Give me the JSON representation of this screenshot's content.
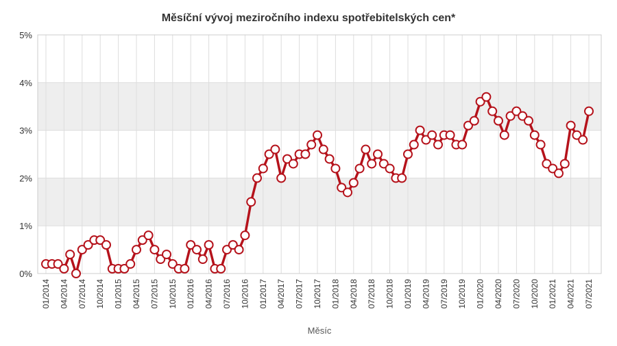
{
  "chart_data": {
    "type": "line",
    "title": "Měsíční vývoj meziročního indexu spotřebitelských cen*",
    "xlabel": "Měsíc",
    "ylabel": "",
    "ylim": [
      0,
      5
    ],
    "y_ticks": [
      "0%",
      "1%",
      "2%",
      "3%",
      "4%",
      "5%"
    ],
    "grid": true,
    "legend": "none",
    "colors": {
      "line": "#b5121b",
      "marker_fill": "#ffffff",
      "band": "#eeeeee",
      "grid": "#dddddd"
    },
    "x_tick_labels": [
      "01/2014",
      "04/2014",
      "07/2014",
      "10/2014",
      "01/2015",
      "04/2015",
      "07/2015",
      "10/2015",
      "01/2016",
      "04/2016",
      "07/2016",
      "10/2016",
      "01/2017",
      "04/2017",
      "07/2017",
      "10/2017",
      "01/2018",
      "04/2018",
      "07/2018",
      "10/2018",
      "01/2019",
      "04/2019",
      "07/2019",
      "10/2019",
      "01/2020",
      "04/2020",
      "07/2020",
      "10/2020",
      "01/2021",
      "04/2021",
      "07/2021"
    ],
    "series": [
      {
        "x_start": "01/2014",
        "x_end": "07/2021",
        "values": [
          0.2,
          0.2,
          0.2,
          0.1,
          0.4,
          0.0,
          0.5,
          0.6,
          0.7,
          0.7,
          0.6,
          0.1,
          0.1,
          0.1,
          0.2,
          0.5,
          0.7,
          0.8,
          0.5,
          0.3,
          0.4,
          0.2,
          0.1,
          0.1,
          0.6,
          0.5,
          0.3,
          0.6,
          0.1,
          0.1,
          0.5,
          0.6,
          0.5,
          0.8,
          1.5,
          2.0,
          2.2,
          2.5,
          2.6,
          2.0,
          2.4,
          2.3,
          2.5,
          2.5,
          2.7,
          2.9,
          2.6,
          2.4,
          2.2,
          1.8,
          1.7,
          1.9,
          2.2,
          2.6,
          2.3,
          2.5,
          2.3,
          2.2,
          2.0,
          2.0,
          2.5,
          2.7,
          3.0,
          2.8,
          2.9,
          2.7,
          2.9,
          2.9,
          2.7,
          2.7,
          3.1,
          3.2,
          3.6,
          3.7,
          3.4,
          3.2,
          2.9,
          3.3,
          3.4,
          3.3,
          3.2,
          2.9,
          2.7,
          2.3,
          2.2,
          2.1,
          2.3,
          3.1,
          2.9,
          2.8,
          3.4
        ]
      }
    ]
  }
}
